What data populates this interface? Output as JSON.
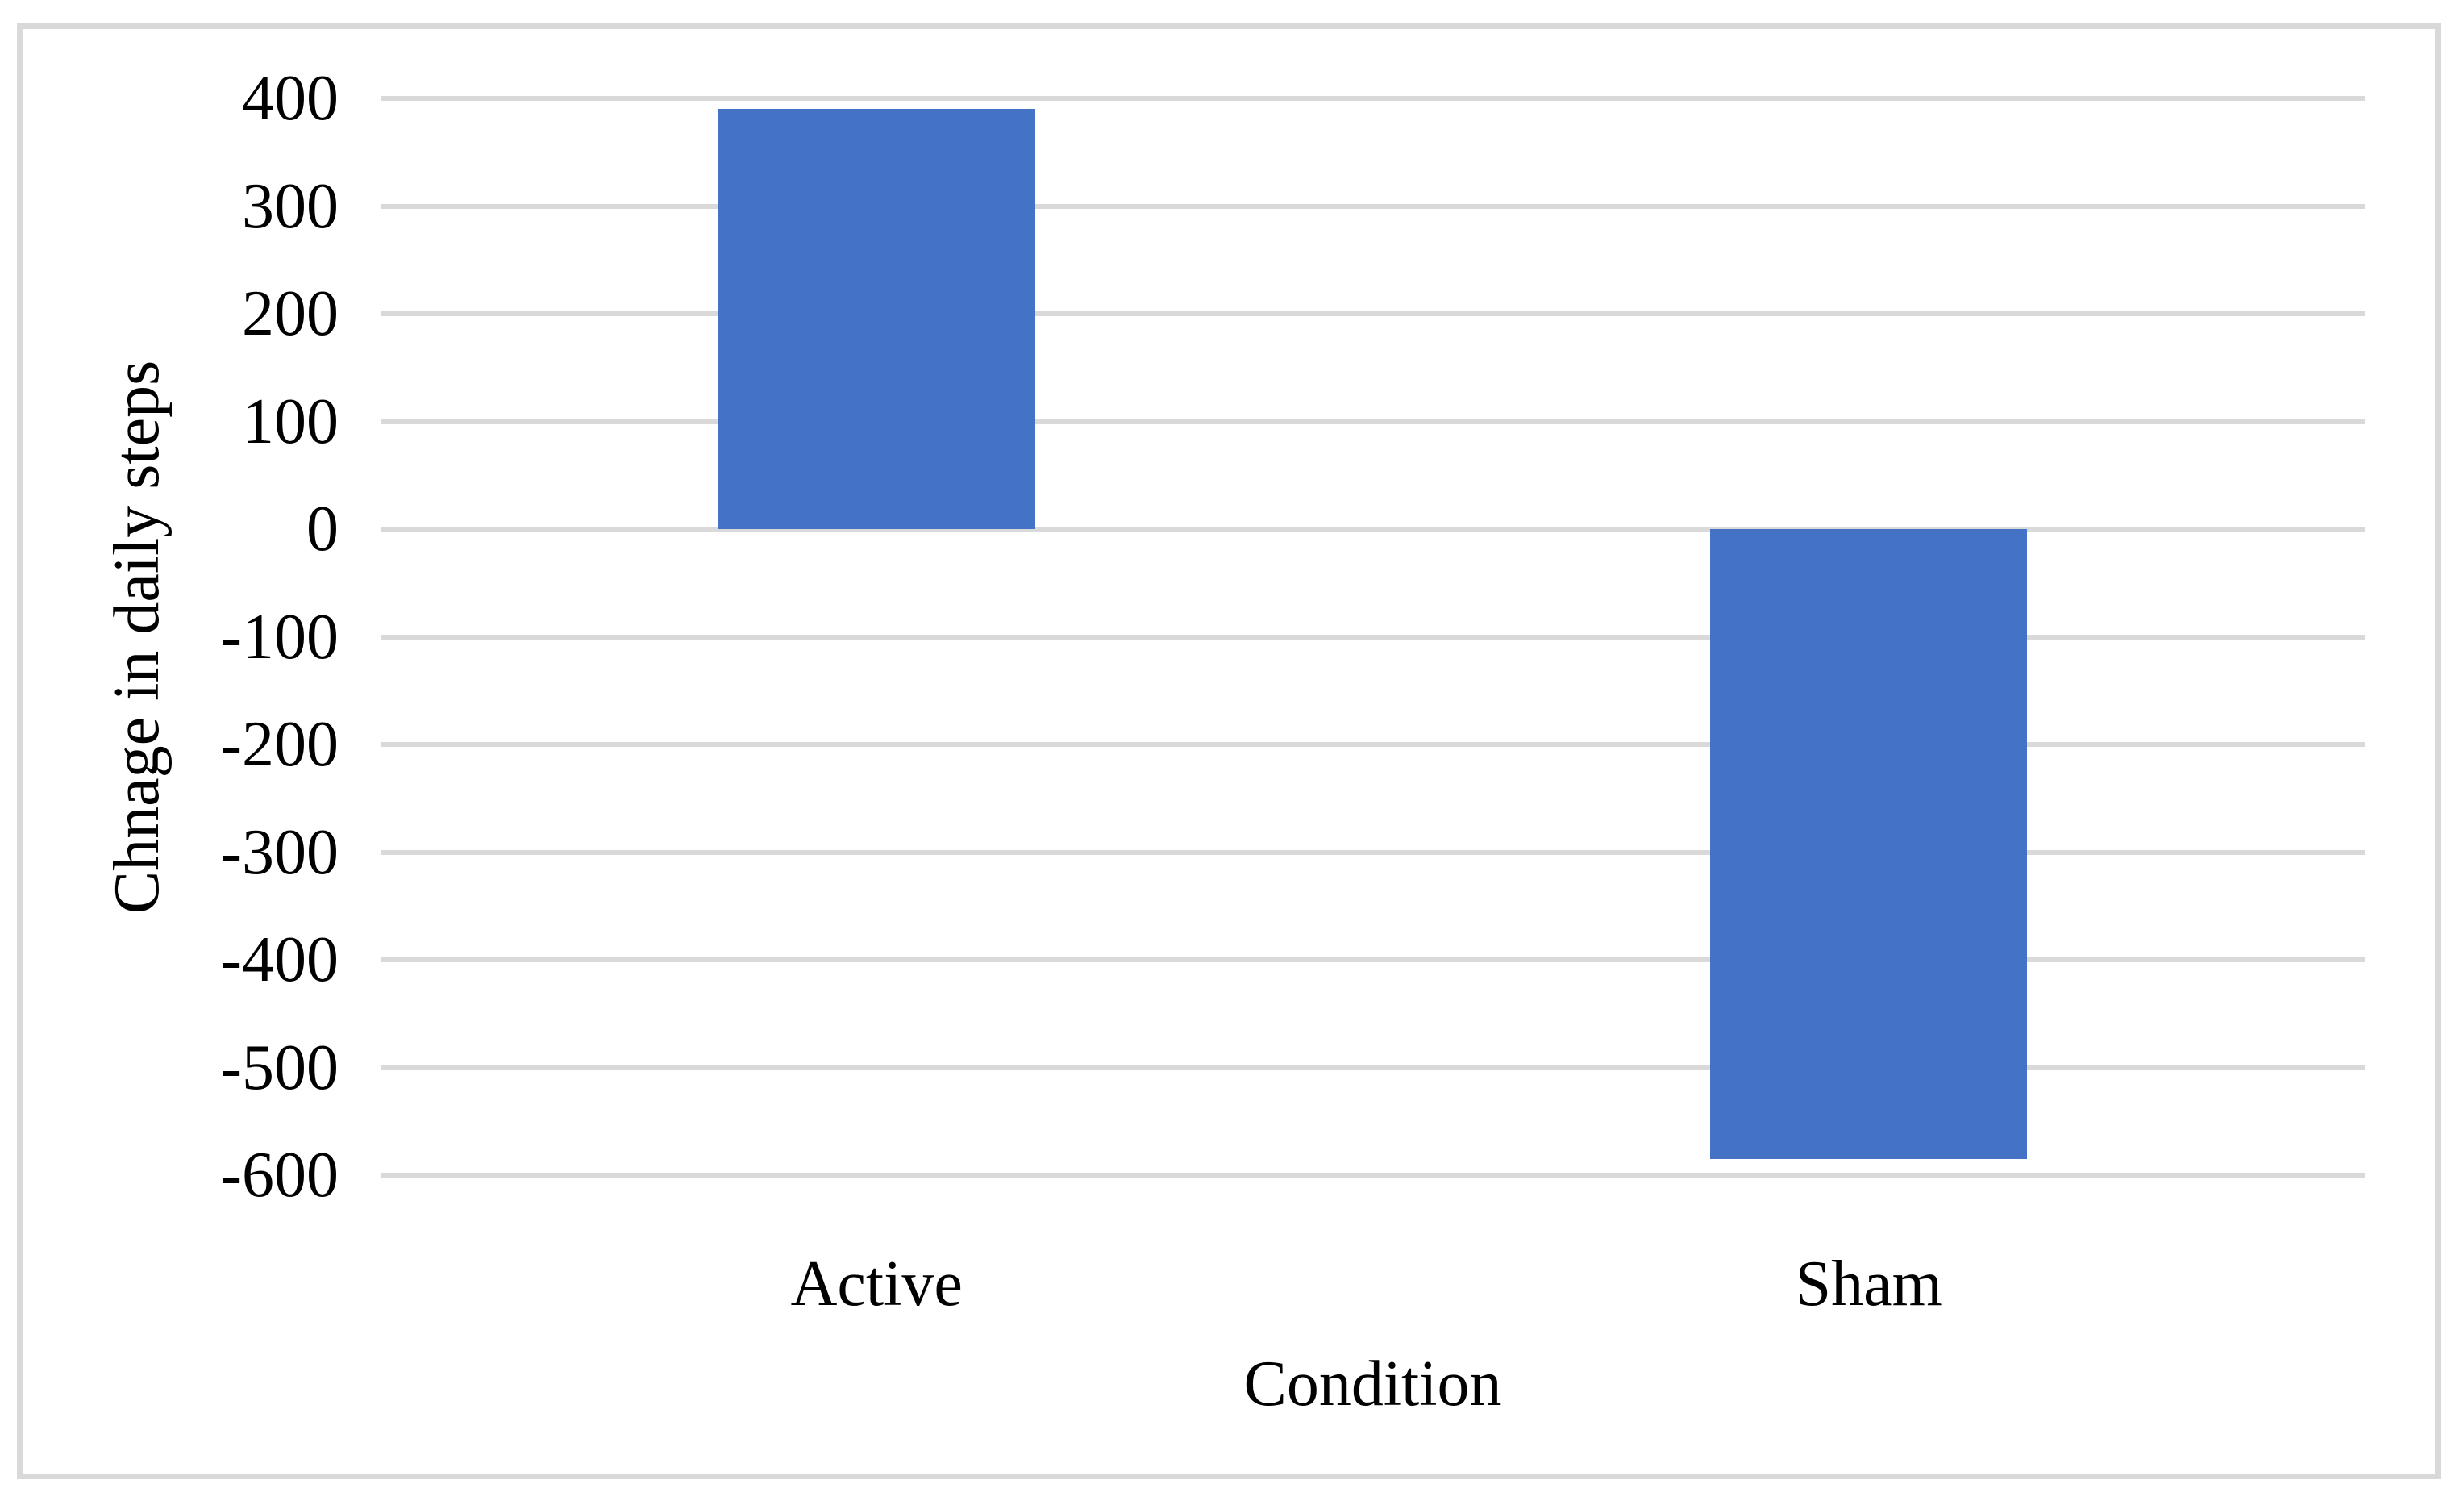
{
  "chart_data": {
    "type": "bar",
    "title": "",
    "categories": [
      "Active",
      "Sham"
    ],
    "values": [
      390,
      -585
    ],
    "xlabel": "Condition",
    "ylabel": "Chnage in daily steps",
    "ylim": [
      -600,
      400
    ],
    "ytick_interval": 100,
    "yticks": [
      400,
      300,
      200,
      100,
      0,
      -100,
      -200,
      -300,
      -400,
      -500,
      -600
    ],
    "grid": true,
    "legend": false,
    "bar_color": "#4472C4",
    "gridline_color": "#D9D9D9",
    "border_color": "#D9D9D9",
    "text_color": "#000000",
    "background_color": "#FFFFFF"
  }
}
